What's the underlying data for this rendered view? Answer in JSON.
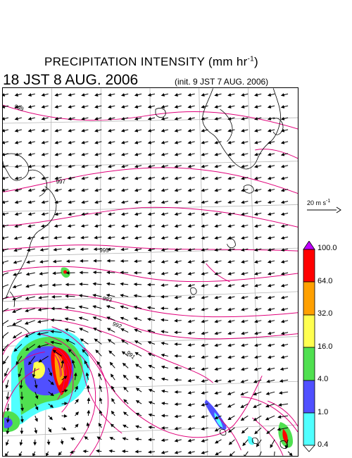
{
  "title": {
    "main": "PRECIPITATION INTENSITY (mm hr",
    "unit_exp": "-1",
    "unit_close": ")"
  },
  "valid_time": "18 JST 8 AUG. 2006",
  "init_time": "(init. 9 JST 7 AUG. 2006)",
  "reference_vector": {
    "label": "20 m s",
    "exp": "-1"
  },
  "colorbar": {
    "labels": [
      "100.0",
      "64.0",
      "32.0",
      "16.0",
      "4.0",
      "1.0",
      "0.4"
    ],
    "colors": {
      "over": "#c000ff",
      "c64_100": "#ff0000",
      "c32_64": "#ffa000",
      "c16_32": "#ffff50",
      "c4_16": "#50e050",
      "c1_4": "#5050ff",
      "c04_1": "#50ffff",
      "under": "#ffffff"
    }
  },
  "contour_labels": [
    "999",
    "997",
    "995",
    "993",
    "992",
    "991"
  ],
  "colors": {
    "isobar": "#e0007a",
    "coast": "#000000",
    "grid": "#b0b0b0",
    "vector": "#000000"
  }
}
